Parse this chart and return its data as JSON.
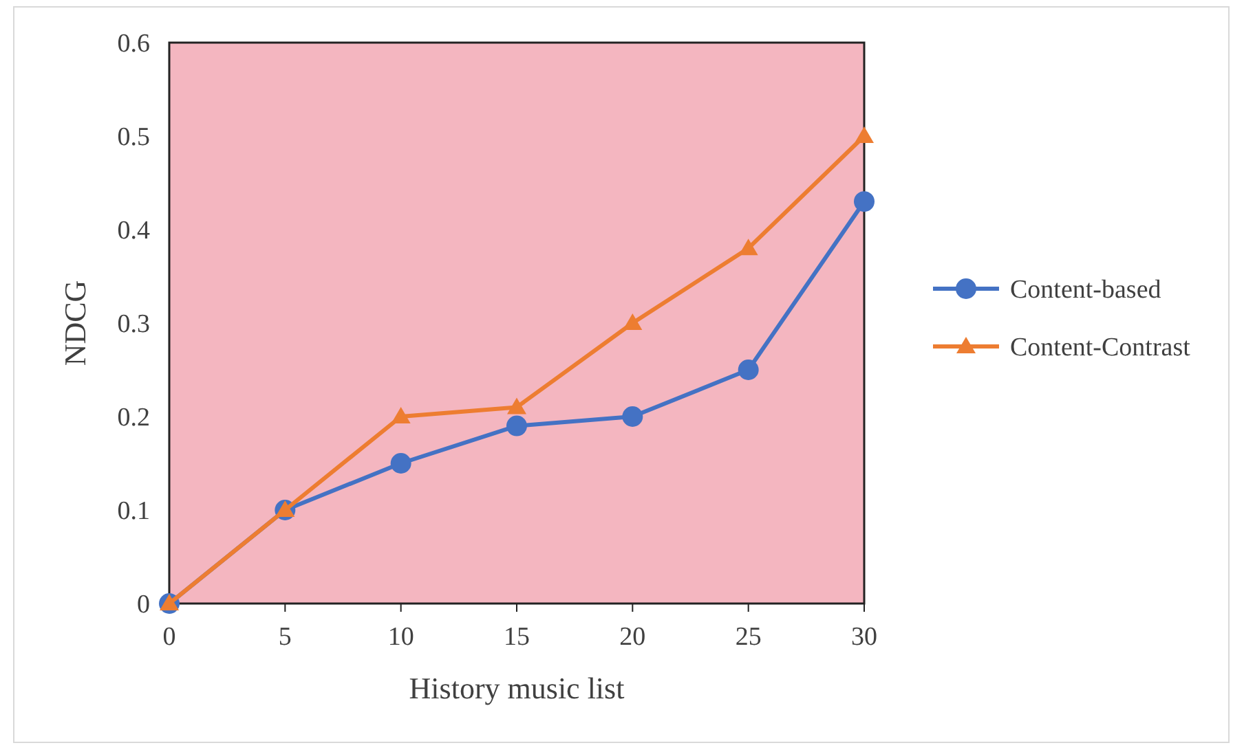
{
  "chart_data": {
    "type": "line",
    "xlabel": "History music list",
    "ylabel": "NDCG",
    "x": [
      0,
      5,
      10,
      15,
      20,
      25,
      30
    ],
    "series": [
      {
        "name": "Content-based",
        "color": "#4472c4",
        "marker": "circle",
        "values": [
          0,
          0.1,
          0.15,
          0.19,
          0.2,
          0.25,
          0.43
        ]
      },
      {
        "name": "Content-Contrast",
        "color": "#ed7d31",
        "marker": "triangle",
        "values": [
          0,
          0.1,
          0.2,
          0.21,
          0.3,
          0.38,
          0.5
        ]
      }
    ],
    "xlim": [
      0,
      30
    ],
    "xticks": [
      0,
      5,
      10,
      15,
      20,
      25,
      30
    ],
    "ylim": [
      0,
      0.6
    ],
    "yticks": [
      0,
      0.1,
      0.2,
      0.3,
      0.4,
      0.5,
      0.6
    ],
    "grid": false,
    "legend": "right",
    "line_style": "solid"
  }
}
